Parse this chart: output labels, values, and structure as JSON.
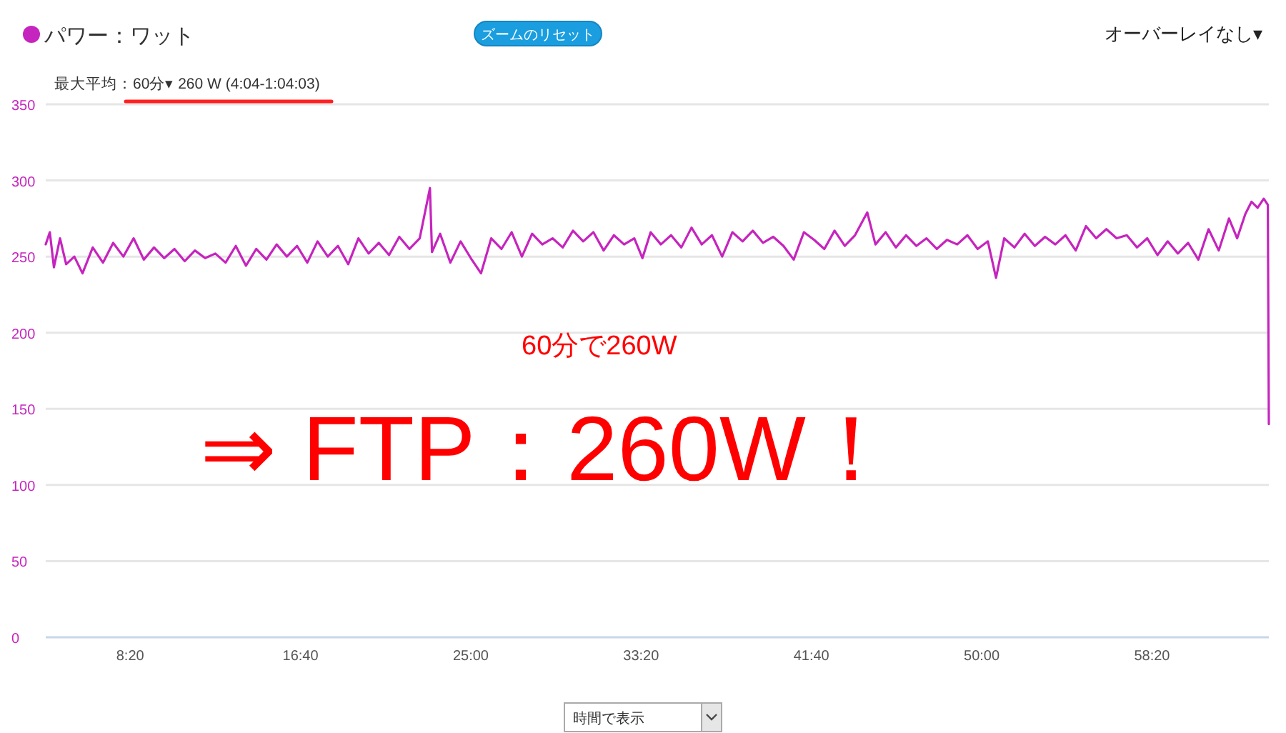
{
  "chart_data": {
    "type": "line",
    "x": [
      4.2,
      4.4,
      4.6,
      4.9,
      5.2,
      5.6,
      6.0,
      6.5,
      7.0,
      7.5,
      8.0,
      8.5,
      9.0,
      9.5,
      10.0,
      10.5,
      11.0,
      11.5,
      12.0,
      12.5,
      13.0,
      13.5,
      14.0,
      14.5,
      15.0,
      15.5,
      16.0,
      16.5,
      17.0,
      17.5,
      18.0,
      18.5,
      19.0,
      19.5,
      20.0,
      20.5,
      21.0,
      21.5,
      22.0,
      22.5,
      23.0,
      23.1,
      23.5,
      24.0,
      24.5,
      25.0,
      25.5,
      26.0,
      26.5,
      27.0,
      27.5,
      28.0,
      28.5,
      29.0,
      29.5,
      30.0,
      30.5,
      31.0,
      31.5,
      32.0,
      32.5,
      33.0,
      33.4,
      33.8,
      34.3,
      34.8,
      35.3,
      35.8,
      36.3,
      36.8,
      37.3,
      37.8,
      38.3,
      38.8,
      39.3,
      39.8,
      40.3,
      40.8,
      41.3,
      41.8,
      42.3,
      42.8,
      43.3,
      43.8,
      44.4,
      44.8,
      45.3,
      45.8,
      46.3,
      46.8,
      47.3,
      47.8,
      48.3,
      48.8,
      49.3,
      49.8,
      50.3,
      50.7,
      51.1,
      51.6,
      52.1,
      52.6,
      53.1,
      53.6,
      54.1,
      54.6,
      55.1,
      55.6,
      56.1,
      56.6,
      57.1,
      57.6,
      58.1,
      58.6,
      59.1,
      59.6,
      60.1,
      60.6,
      61.1,
      61.6,
      62.1,
      62.5,
      62.9,
      63.2,
      63.5,
      63.8,
      64.0,
      64.05
    ],
    "series": [
      {
        "name": "パワー：ワット",
        "color": "#c624be",
        "values": [
          258,
          266,
          243,
          262,
          245,
          250,
          239,
          256,
          246,
          259,
          250,
          262,
          248,
          256,
          249,
          255,
          247,
          254,
          249,
          252,
          246,
          257,
          244,
          255,
          248,
          258,
          250,
          257,
          246,
          260,
          250,
          257,
          245,
          262,
          252,
          259,
          251,
          263,
          255,
          262,
          295,
          253,
          265,
          246,
          260,
          249,
          239,
          262,
          255,
          266,
          250,
          265,
          258,
          262,
          256,
          267,
          260,
          266,
          254,
          264,
          258,
          262,
          249,
          266,
          258,
          264,
          256,
          269,
          258,
          264,
          250,
          266,
          260,
          267,
          259,
          263,
          257,
          248,
          266,
          261,
          255,
          267,
          257,
          264,
          279,
          258,
          266,
          256,
          264,
          257,
          262,
          255,
          261,
          258,
          264,
          255,
          260,
          236,
          262,
          256,
          265,
          257,
          263,
          258,
          264,
          254,
          270,
          262,
          268,
          262,
          264,
          256,
          262,
          251,
          260,
          252,
          259,
          248,
          268,
          254,
          275,
          262,
          278,
          286,
          282,
          288,
          284,
          140
        ]
      }
    ],
    "xlim": [
      4.2,
      64.05
    ],
    "xticks": [
      {
        "value": 8.3333,
        "label": "8:20"
      },
      {
        "value": 16.6667,
        "label": "16:40"
      },
      {
        "value": 25,
        "label": "25:00"
      },
      {
        "value": 33.3333,
        "label": "33:20"
      },
      {
        "value": 41.6667,
        "label": "41:40"
      },
      {
        "value": 50,
        "label": "50:00"
      },
      {
        "value": 58.3333,
        "label": "58:20"
      }
    ],
    "ylim": [
      0,
      350
    ],
    "yticks": [
      0,
      50,
      100,
      150,
      200,
      250,
      300,
      350
    ],
    "grid": "y",
    "legend": "top left",
    "marker": "none",
    "annotations": [
      "最大平均：60分▾ 260 W (4:04-1:04:03)",
      "ズームのリセット",
      "オーバーレイなし▾",
      "60分で260W",
      "⇒ FTP：260W！",
      "時間で表示"
    ]
  }
}
